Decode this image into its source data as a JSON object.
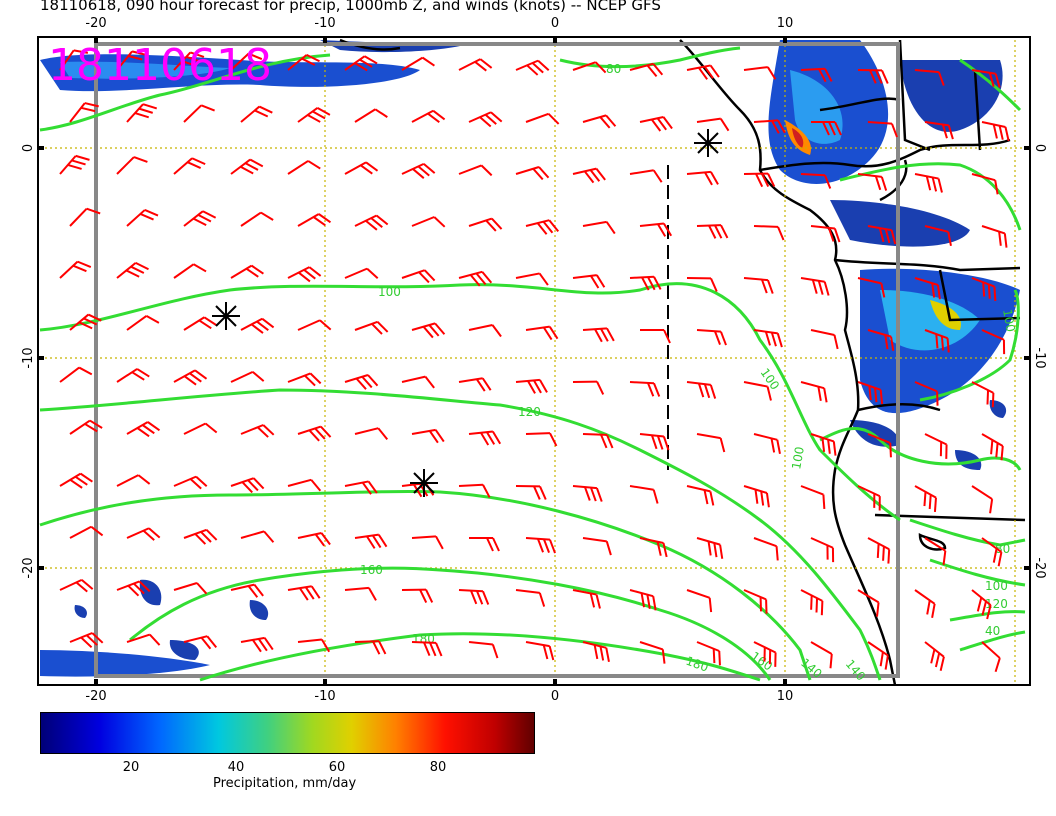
{
  "title": "18110618, 090 hour forecast for precip, 1000mb Z, and winds (knots) -- NCEP GFS",
  "stamp": "18110618",
  "axes": {
    "lon_ticks": [
      "-20",
      "-10",
      "0",
      "10"
    ],
    "lat_ticks": [
      "0",
      "-10",
      "-20"
    ]
  },
  "contour_labels": [
    "80",
    "100",
    "100",
    "100",
    "120",
    "120",
    "160",
    "180",
    "180",
    "160",
    "140",
    "100",
    "80",
    "140",
    "100",
    "40"
  ],
  "colorbar": {
    "ticks": [
      "20",
      "40",
      "60",
      "80"
    ],
    "label": "Precipitation, mm/day"
  },
  "colors": {
    "barbs": "#ff0000",
    "contours": "#33dd33",
    "stamp": "#ff00ff",
    "coast": "#000000"
  },
  "icons": [
    "storm-center-marker-icon"
  ]
}
